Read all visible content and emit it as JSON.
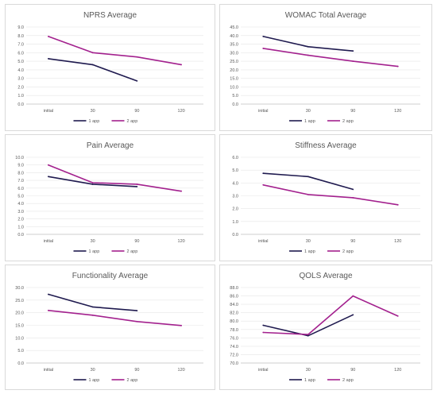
{
  "chart_data": [
    {
      "type": "line",
      "title": "NPRS Average",
      "categories": [
        "initial",
        "30",
        "90",
        "120"
      ],
      "ylim": [
        0,
        9
      ],
      "yticks": [
        "0.0",
        "1.0",
        "2.0",
        "3.0",
        "4.0",
        "5.0",
        "6.0",
        "7.0",
        "8.0",
        "9.0"
      ],
      "series": [
        {
          "name": "1 app",
          "values": [
            5.3,
            4.6,
            2.7,
            null
          ]
        },
        {
          "name": "2 app",
          "values": [
            7.9,
            6.0,
            5.5,
            4.6
          ]
        }
      ]
    },
    {
      "type": "line",
      "title": "WOMAC Total Average",
      "categories": [
        "initial",
        "30",
        "90",
        "120"
      ],
      "ylim": [
        0,
        45
      ],
      "yticks": [
        "0.0",
        "5.0",
        "10.0",
        "15.0",
        "20.0",
        "25.0",
        "30.0",
        "35.0",
        "40.0",
        "45.0"
      ],
      "series": [
        {
          "name": "1 app",
          "values": [
            39.5,
            33.5,
            31.0,
            null
          ]
        },
        {
          "name": "2 app",
          "values": [
            32.5,
            28.5,
            25.0,
            22.0
          ]
        }
      ]
    },
    {
      "type": "line",
      "title": "Pain Average",
      "categories": [
        "initial",
        "30",
        "90",
        "120"
      ],
      "ylim": [
        0,
        10
      ],
      "yticks": [
        "0.0",
        "1.0",
        "2.0",
        "3.0",
        "4.0",
        "5.0",
        "6.0",
        "7.0",
        "8.0",
        "9.0",
        "10.0"
      ],
      "series": [
        {
          "name": "1 app",
          "values": [
            7.5,
            6.5,
            6.2,
            null
          ]
        },
        {
          "name": "2 app",
          "values": [
            9.0,
            6.7,
            6.5,
            5.6
          ]
        }
      ]
    },
    {
      "type": "line",
      "title": "Stiffness Average",
      "categories": [
        "initial",
        "30",
        "90",
        "120"
      ],
      "ylim": [
        0,
        6
      ],
      "yticks": [
        "0.0",
        "1.0",
        "2.0",
        "3.0",
        "4.0",
        "5.0",
        "6.0"
      ],
      "series": [
        {
          "name": "1 app",
          "values": [
            4.75,
            4.5,
            3.5,
            null
          ]
        },
        {
          "name": "2 app",
          "values": [
            3.85,
            3.1,
            2.85,
            2.3
          ]
        }
      ]
    },
    {
      "type": "line",
      "title": "Functionality Average",
      "categories": [
        "initial",
        "30",
        "90",
        "120"
      ],
      "ylim": [
        0,
        30
      ],
      "yticks": [
        "0.0",
        "5.0",
        "10.0",
        "15.0",
        "20.0",
        "25.0",
        "30.0"
      ],
      "series": [
        {
          "name": "1 app",
          "values": [
            27.3,
            22.3,
            20.8,
            null
          ]
        },
        {
          "name": "2 app",
          "values": [
            20.9,
            19.0,
            16.5,
            14.9
          ]
        }
      ]
    },
    {
      "type": "line",
      "title": "QOLS Average",
      "categories": [
        "initial",
        "30",
        "90",
        "120"
      ],
      "ylim": [
        70,
        88
      ],
      "yticks": [
        "70.0",
        "72.0",
        "74.0",
        "76.0",
        "78.0",
        "80.0",
        "82.0",
        "84.0",
        "86.0",
        "88.0"
      ],
      "series": [
        {
          "name": "1 app",
          "values": [
            79.0,
            76.5,
            81.5,
            null
          ]
        },
        {
          "name": "2 app",
          "values": [
            77.3,
            76.8,
            86.0,
            81.2
          ]
        }
      ]
    }
  ],
  "colors": {
    "series_1": "#1f1a4f",
    "series_2": "#a3218e",
    "grid": "#e6e6e6",
    "axis": "#bfbfbf",
    "text": "#595959"
  }
}
